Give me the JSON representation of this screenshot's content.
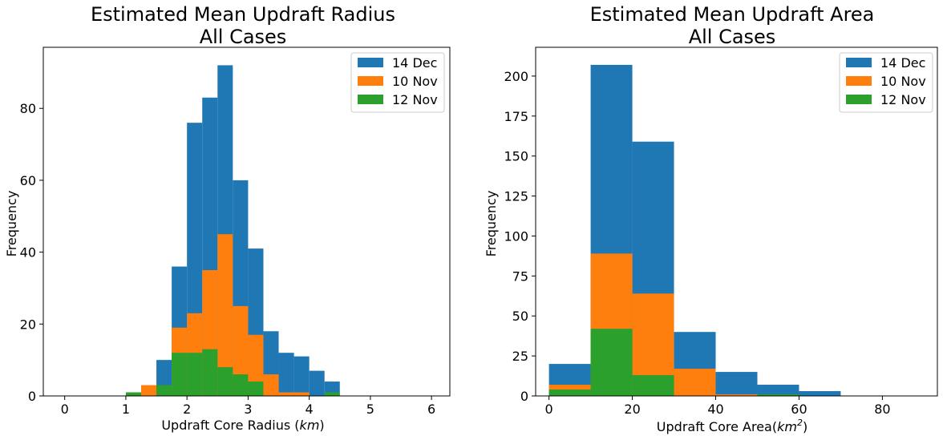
{
  "chart_data": [
    {
      "type": "bar",
      "subtype": "histogram",
      "title_line1": "Estimated Mean Updraft Radius",
      "title_line2": "All Cases",
      "xlabel_main": "Updraft Core Radius (",
      "xlabel_unit": "km",
      "xlabel_tail": ")",
      "ylabel": "Frequency",
      "xlim": [
        -0.35,
        6.3
      ],
      "ylim": [
        0,
        97
      ],
      "xticks": [
        0,
        1,
        2,
        3,
        4,
        5,
        6
      ],
      "yticks": [
        0,
        20,
        40,
        60,
        80
      ],
      "legend_position": "top-right",
      "grid": false,
      "bin_width": 0.25,
      "series": [
        {
          "name": "14 Dec",
          "color": "#1f77b4",
          "bins": [
            {
              "x0": 1.5,
              "value": 10
            },
            {
              "x0": 1.75,
              "value": 36
            },
            {
              "x0": 2.0,
              "value": 76
            },
            {
              "x0": 2.25,
              "value": 83
            },
            {
              "x0": 2.5,
              "value": 92
            },
            {
              "x0": 2.75,
              "value": 60
            },
            {
              "x0": 3.0,
              "value": 41
            },
            {
              "x0": 3.25,
              "value": 18
            },
            {
              "x0": 3.5,
              "value": 12
            },
            {
              "x0": 3.75,
              "value": 11
            },
            {
              "x0": 4.0,
              "value": 7
            },
            {
              "x0": 4.25,
              "value": 4
            }
          ]
        },
        {
          "name": "10 Nov",
          "color": "#ff7f0e",
          "bins": [
            {
              "x0": 1.25,
              "value": 3
            },
            {
              "x0": 1.75,
              "value": 19
            },
            {
              "x0": 2.0,
              "value": 23
            },
            {
              "x0": 2.25,
              "value": 35
            },
            {
              "x0": 2.5,
              "value": 45
            },
            {
              "x0": 2.75,
              "value": 25
            },
            {
              "x0": 3.0,
              "value": 17
            },
            {
              "x0": 3.25,
              "value": 6
            },
            {
              "x0": 3.5,
              "value": 1
            },
            {
              "x0": 3.75,
              "value": 1
            }
          ]
        },
        {
          "name": "12 Nov",
          "color": "#2ca02c",
          "bins": [
            {
              "x0": 1.0,
              "value": 1
            },
            {
              "x0": 1.5,
              "value": 3
            },
            {
              "x0": 1.75,
              "value": 12
            },
            {
              "x0": 2.0,
              "value": 12
            },
            {
              "x0": 2.25,
              "value": 13
            },
            {
              "x0": 2.5,
              "value": 8
            },
            {
              "x0": 2.75,
              "value": 6
            },
            {
              "x0": 3.0,
              "value": 4
            },
            {
              "x0": 4.25,
              "value": 1
            }
          ]
        }
      ]
    },
    {
      "type": "bar",
      "subtype": "histogram",
      "title_line1": "Estimated Mean Updraft Area",
      "title_line2": "All Cases",
      "xlabel_main": "Updraft Core Area(",
      "xlabel_unit": "km",
      "xlabel_sup": "2",
      "xlabel_tail": ")",
      "ylabel": "Frequency",
      "xlim": [
        -3.2,
        93.2
      ],
      "ylim": [
        0,
        218
      ],
      "xticks": [
        0,
        20,
        40,
        60,
        80
      ],
      "yticks": [
        0,
        25,
        50,
        75,
        100,
        125,
        150,
        175,
        200
      ],
      "legend_position": "top-right",
      "grid": false,
      "bin_width": 10,
      "series": [
        {
          "name": "14 Dec",
          "color": "#1f77b4",
          "bins": [
            {
              "x0": 0,
              "value": 20
            },
            {
              "x0": 10,
              "value": 207
            },
            {
              "x0": 20,
              "value": 159
            },
            {
              "x0": 30,
              "value": 40
            },
            {
              "x0": 40,
              "value": 15
            },
            {
              "x0": 50,
              "value": 7
            },
            {
              "x0": 60,
              "value": 3
            }
          ]
        },
        {
          "name": "10 Nov",
          "color": "#ff7f0e",
          "bins": [
            {
              "x0": 0,
              "value": 7
            },
            {
              "x0": 10,
              "value": 89
            },
            {
              "x0": 20,
              "value": 64
            },
            {
              "x0": 30,
              "value": 17
            },
            {
              "x0": 40,
              "value": 1
            }
          ]
        },
        {
          "name": "12 Nov",
          "color": "#2ca02c",
          "bins": [
            {
              "x0": 0,
              "value": 4
            },
            {
              "x0": 10,
              "value": 42
            },
            {
              "x0": 20,
              "value": 13
            },
            {
              "x0": 50,
              "value": 1
            }
          ]
        }
      ]
    }
  ]
}
